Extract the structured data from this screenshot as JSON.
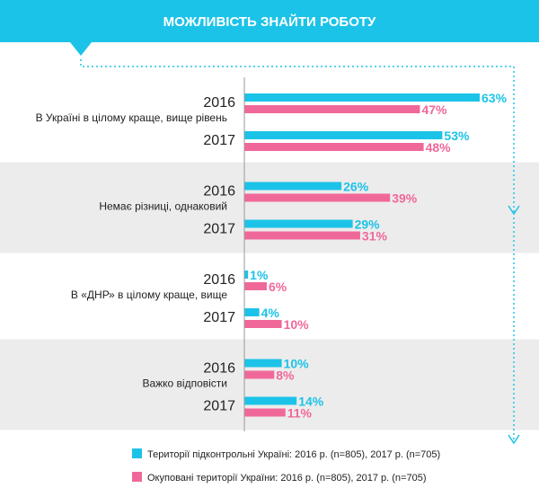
{
  "header": {
    "title": "МОЖЛИВІСТЬ ЗНАЙТИ РОБОТУ"
  },
  "colors": {
    "accent": "#1cc3e8",
    "series1": "#1cc3e8",
    "series2": "#f0689a",
    "band": "#ececec",
    "axis": "#9a9a9a",
    "text": "#222222"
  },
  "chart_data": {
    "type": "bar",
    "orientation": "horizontal",
    "title": "МОЖЛИВІСТЬ ЗНАЙТИ РОБОТУ",
    "xlim": [
      0,
      63
    ],
    "grid": false,
    "legend_position": "bottom",
    "series": [
      {
        "name": "Території підконтрольні Україні:  2016 р. (n=805), 2017 р. (n=705)"
      },
      {
        "name": "Окуповані території України: 2016 р. (n=805), 2017 р. (n=705)"
      }
    ],
    "categories": [
      {
        "label": "В Україні в цілому краще, вище рівень",
        "years": [
          {
            "year": "2016",
            "values": [
              63,
              47
            ],
            "labels": [
              "63%",
              "47%"
            ]
          },
          {
            "year": "2017",
            "values": [
              53,
              48
            ],
            "labels": [
              "53%",
              "48%"
            ]
          }
        ]
      },
      {
        "label": "Немає різниці, однаковий",
        "years": [
          {
            "year": "2016",
            "values": [
              26,
              39
            ],
            "labels": [
              "26%",
              "39%"
            ]
          },
          {
            "year": "2017",
            "values": [
              29,
              31
            ],
            "labels": [
              "29%",
              "31%"
            ]
          }
        ]
      },
      {
        "label": "В «ДНР» в цілому краще, вище",
        "years": [
          {
            "year": "2016",
            "values": [
              1,
              6
            ],
            "labels": [
              "1%",
              "6%"
            ]
          },
          {
            "year": "2017",
            "values": [
              4,
              10
            ],
            "labels": [
              "4%",
              "10%"
            ]
          }
        ]
      },
      {
        "label": "Важко відповісти",
        "years": [
          {
            "year": "2016",
            "values": [
              10,
              8
            ],
            "labels": [
              "10%",
              "8%"
            ]
          },
          {
            "year": "2017",
            "values": [
              14,
              11
            ],
            "labels": [
              "14%",
              "11%"
            ]
          }
        ]
      }
    ]
  }
}
